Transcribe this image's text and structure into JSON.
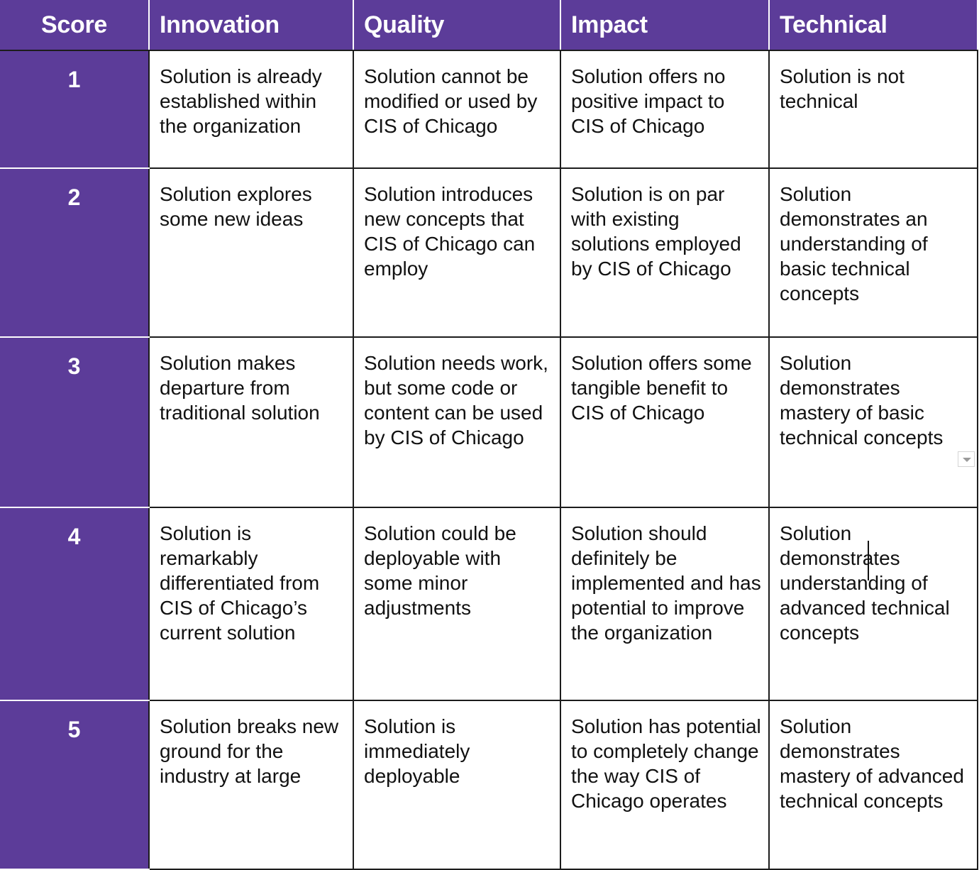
{
  "columns": [
    "Score",
    "Innovation",
    "Quality",
    "Impact",
    "Technical"
  ],
  "rows": [
    {
      "score": "1",
      "innovation": "Solution is already established within the organization",
      "quality": "Solution cannot be modified or used by CIS of Chicago",
      "impact": "Solution offers no positive impact to CIS of Chicago",
      "technical": "Solution is not technical"
    },
    {
      "score": "2",
      "innovation": "Solution explores some new ideas",
      "quality": "Solution introduces new concepts that CIS of Chicago can employ",
      "impact": "Solution is on par with existing solutions employed by CIS of Chicago",
      "technical": "Solution demonstrates an understanding of basic technical concepts"
    },
    {
      "score": "3",
      "innovation": "Solution makes departure from traditional solution",
      "quality": "Solution needs work, but some code or content can be used by CIS of Chicago",
      "impact": "Solution offers some tangible benefit to CIS of Chicago",
      "technical": "Solution demonstrates mastery of basic technical concepts"
    },
    {
      "score": "4",
      "innovation": "Solution is remarkably differentiated from CIS of Chicago’s current solution",
      "quality": "Solution could be deployable with some minor adjustments",
      "impact": "Solution should definitely be implemented and has potential to improve the organization",
      "technical": "Solution demonstrates understanding of advanced technical concepts"
    },
    {
      "score": "5",
      "innovation": "Solution breaks new ground for the industry at large",
      "quality": "Solution is immediately deployable",
      "impact": "Solution has potential to completely change the way CIS of Chicago operates",
      "technical": "Solution demonstrates mastery of advanced technical concepts"
    }
  ],
  "colors": {
    "header_bg": "#5c3c99",
    "header_text": "#ffffff",
    "grid": "#1c1c1c"
  },
  "icons": {
    "cell_menu": "chevron-down-icon"
  }
}
